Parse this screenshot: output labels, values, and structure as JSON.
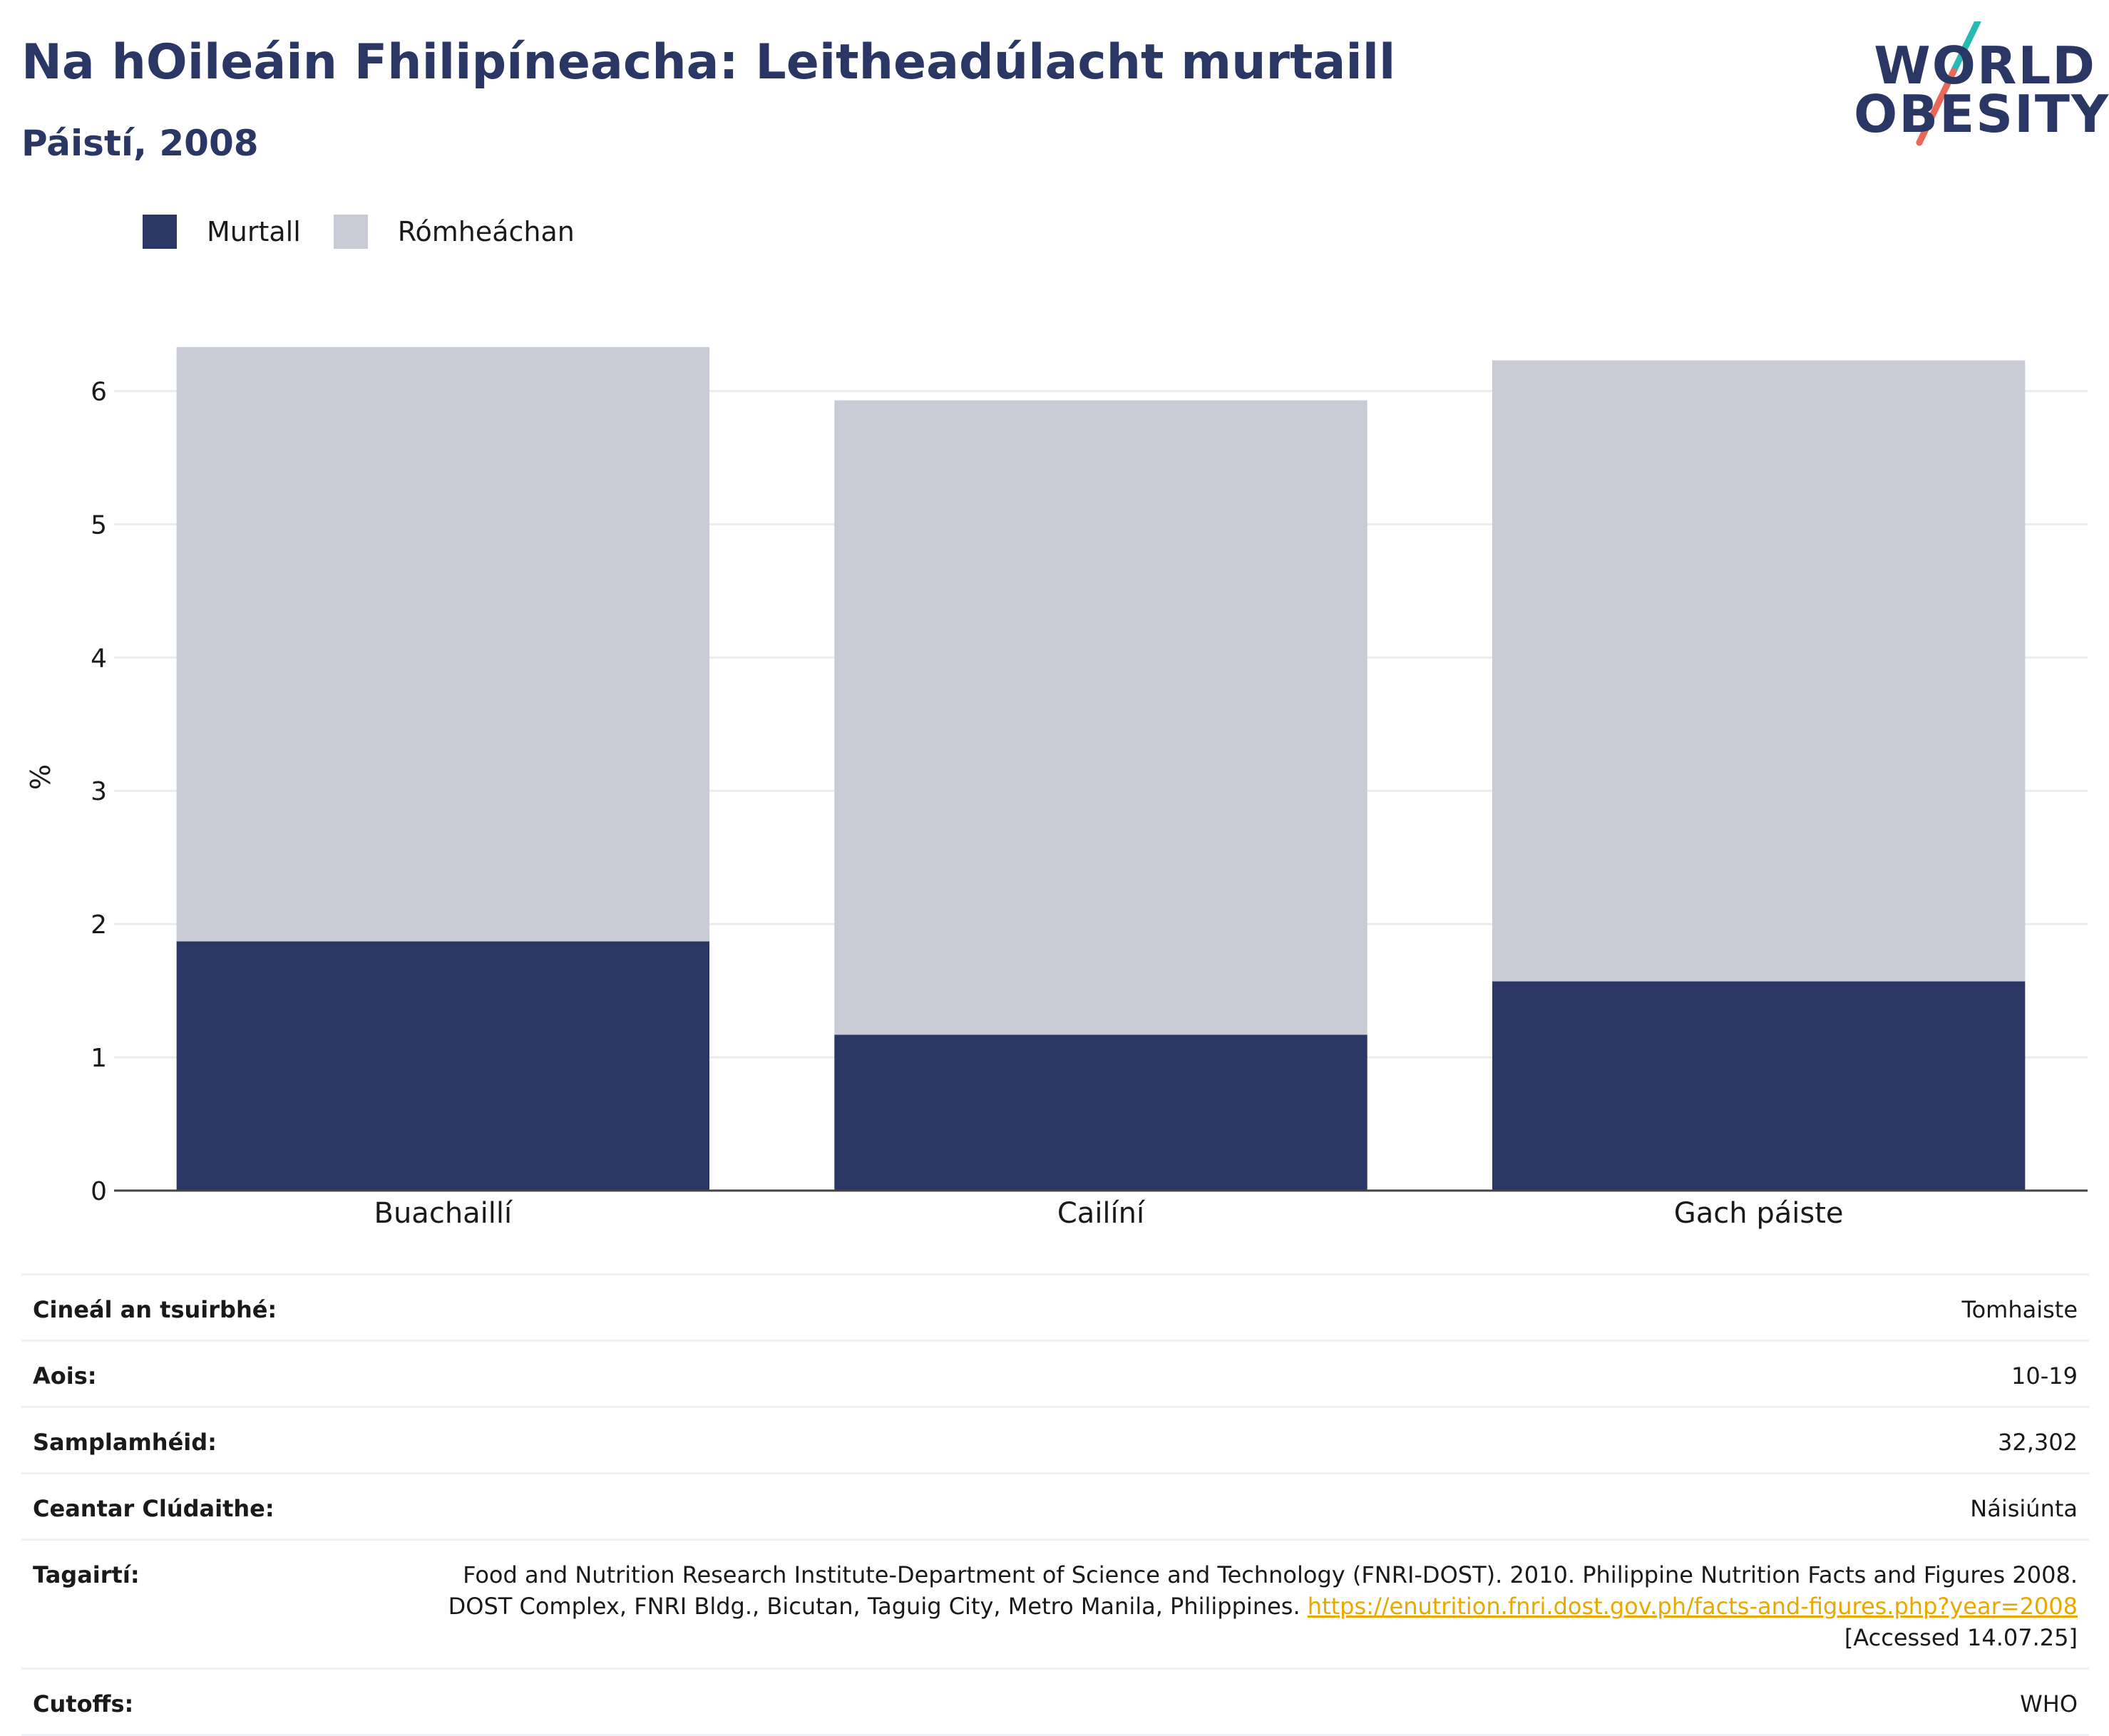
{
  "header": {
    "title": "Na hOileáin Fhilipíneacha: Leitheadúlacht murtaill",
    "subtitle": "Páistí, 2008"
  },
  "logo": {
    "line1": "WORLD",
    "line2": "OBESITY",
    "colors": {
      "navy": "#2a3764",
      "teal": "#29b9b3",
      "coral": "#e8685a"
    }
  },
  "chart_data": {
    "type": "bar",
    "stacked": true,
    "categories": [
      "Buachaillí",
      "Cailíní",
      "Gach páiste"
    ],
    "series": [
      {
        "name": "Murtall",
        "color": "#2a3764",
        "values": [
          1.87,
          1.17,
          1.57
        ]
      },
      {
        "name": "Rómheáchan",
        "color": "#c9cbd7",
        "values": [
          4.46,
          4.76,
          4.66
        ]
      }
    ],
    "ylabel": "%",
    "ylim": [
      0,
      6.5
    ],
    "yticks": [
      0,
      1,
      2,
      3,
      4,
      5,
      6
    ],
    "grid": true,
    "legend_position": "top-left"
  },
  "info": {
    "rows": [
      {
        "label": "Cineál an tsuirbhé:",
        "value": "Tomhaiste"
      },
      {
        "label": "Aois:",
        "value": "10-19"
      },
      {
        "label": "Samplamhéid:",
        "value": "32,302"
      },
      {
        "label": "Ceantar Clúdaithe:",
        "value": "Náisiúnta"
      }
    ],
    "reference": {
      "label": "Tagairtí:",
      "text": "Food and Nutrition Research Institute-Department of Science and Technology (FNRI-DOST). 2010. Philippine Nutrition Facts and Figures 2008. DOST Complex, FNRI Bldg., Bicutan, Taguig City, Metro Manila, Philippines. ",
      "link": "https://enutrition.fnri.dost.gov.ph/facts-and-figures.php?year=2008",
      "accessed": " [Accessed 14.07.25]"
    },
    "cutoffs": {
      "label": "Cutoffs:",
      "value": "WHO"
    }
  }
}
